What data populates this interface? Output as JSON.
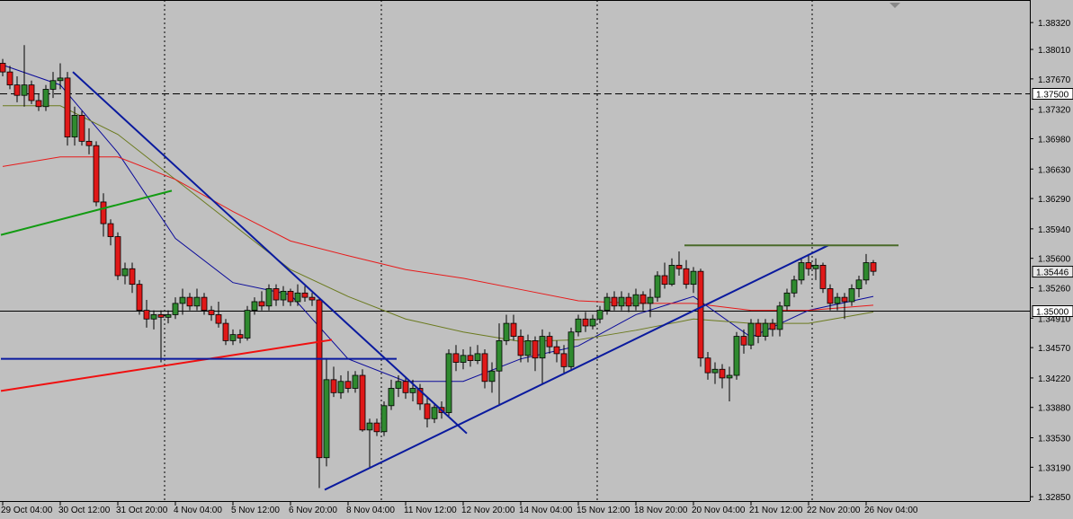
{
  "chart_data": {
    "type": "candlestick",
    "categories": [
      "29 Oct 04:00",
      null,
      null,
      null,
      null,
      null,
      null,
      null,
      "30 Oct 12:00",
      null,
      null,
      null,
      null,
      null,
      null,
      null,
      "31 Oct 20:00",
      null,
      null,
      null,
      null,
      null,
      null,
      null,
      "4 Nov 04:00",
      null,
      null,
      null,
      null,
      null,
      null,
      null,
      "5 Nov 12:00",
      null,
      null,
      null,
      null,
      null,
      null,
      null,
      "6 Nov 20:00",
      null,
      null,
      null,
      null,
      null,
      null,
      null,
      "8 Nov 04:00",
      null,
      null,
      null,
      null,
      null,
      null,
      null,
      "11 Nov 12:00",
      null,
      null,
      null,
      null,
      null,
      null,
      null,
      "12 Nov 20:00",
      null,
      null,
      null,
      null,
      null,
      null,
      null,
      "14 Nov 04:00",
      null,
      null,
      null,
      null,
      null,
      null,
      null,
      "15 Nov 12:00",
      null,
      null,
      null,
      null,
      null,
      null,
      null,
      "18 Nov 20:00",
      null,
      null,
      null,
      null,
      null,
      null,
      null,
      "20 Nov 04:00",
      null,
      null,
      null,
      null,
      null,
      null,
      null,
      "21 Nov 12:00",
      null,
      null,
      null,
      null,
      null,
      null,
      null,
      "22 Nov 20:00",
      null,
      null,
      null,
      null,
      null,
      null,
      null,
      "26 Nov 04:00",
      null
    ],
    "ohlc": [
      [
        1.3785,
        1.379,
        1.377,
        1.3775
      ],
      [
        1.3775,
        1.3782,
        1.3755,
        1.376
      ],
      [
        1.376,
        1.377,
        1.374,
        1.3748
      ],
      [
        1.3748,
        1.3806,
        1.3735,
        1.376
      ],
      [
        1.376,
        1.3765,
        1.3738,
        1.3742
      ],
      [
        1.3742,
        1.375,
        1.373,
        1.3735
      ],
      [
        1.3735,
        1.376,
        1.373,
        1.3755
      ],
      [
        1.3755,
        1.3775,
        1.3745,
        1.3765
      ],
      [
        1.3765,
        1.3785,
        1.3755,
        1.3768
      ],
      [
        1.3768,
        1.3775,
        1.369,
        1.37
      ],
      [
        1.37,
        1.3735,
        1.369,
        1.3725
      ],
      [
        1.3725,
        1.373,
        1.369,
        1.3695
      ],
      [
        1.3695,
        1.371,
        1.368,
        1.369
      ],
      [
        1.369,
        1.3695,
        1.362,
        1.3625
      ],
      [
        1.3625,
        1.3635,
        1.3585,
        1.36
      ],
      [
        1.36,
        1.3605,
        1.3575,
        1.3585
      ],
      [
        1.3585,
        1.359,
        1.3535,
        1.354
      ],
      [
        1.354,
        1.3555,
        1.353,
        1.3548
      ],
      [
        1.3548,
        1.3555,
        1.352,
        1.353
      ],
      [
        1.353,
        1.3535,
        1.3495,
        1.35
      ],
      [
        1.35,
        1.3512,
        1.348,
        1.349
      ],
      [
        1.349,
        1.35,
        1.3478,
        1.3495
      ],
      [
        1.3495,
        1.35,
        1.344,
        1.3492
      ],
      [
        1.3492,
        1.35,
        1.3485,
        1.3495
      ],
      [
        1.3495,
        1.3515,
        1.349,
        1.3508
      ],
      [
        1.3508,
        1.3525,
        1.3495,
        1.3515
      ],
      [
        1.3515,
        1.352,
        1.35,
        1.3505
      ],
      [
        1.3505,
        1.3525,
        1.35,
        1.3515
      ],
      [
        1.3515,
        1.352,
        1.3495,
        1.35
      ],
      [
        1.35,
        1.3505,
        1.3488,
        1.3495
      ],
      [
        1.3495,
        1.351,
        1.348,
        1.3485
      ],
      [
        1.3485,
        1.349,
        1.346,
        1.3465
      ],
      [
        1.3465,
        1.3478,
        1.346,
        1.3472
      ],
      [
        1.3472,
        1.3478,
        1.3462,
        1.3468
      ],
      [
        1.3468,
        1.3505,
        1.3465,
        1.35
      ],
      [
        1.35,
        1.3515,
        1.3495,
        1.351
      ],
      [
        1.351,
        1.3522,
        1.35,
        1.3505
      ],
      [
        1.3505,
        1.353,
        1.35,
        1.3525
      ],
      [
        1.3525,
        1.353,
        1.3505,
        1.3512
      ],
      [
        1.3512,
        1.3528,
        1.3505,
        1.3522
      ],
      [
        1.3522,
        1.3525,
        1.3505,
        1.351
      ],
      [
        1.351,
        1.353,
        1.3505,
        1.352
      ],
      [
        1.352,
        1.3528,
        1.351,
        1.3515
      ],
      [
        1.3515,
        1.352,
        1.3505,
        1.3512
      ],
      [
        1.3512,
        1.3515,
        1.3295,
        1.333
      ],
      [
        1.333,
        1.3445,
        1.332,
        1.342
      ],
      [
        1.342,
        1.3435,
        1.34,
        1.3405
      ],
      [
        1.3405,
        1.3425,
        1.3398,
        1.3418
      ],
      [
        1.3418,
        1.343,
        1.3405,
        1.341
      ],
      [
        1.341,
        1.343,
        1.3405,
        1.3425
      ],
      [
        1.3425,
        1.3432,
        1.336,
        1.3362
      ],
      [
        1.3362,
        1.3375,
        1.3318,
        1.337
      ],
      [
        1.337,
        1.3375,
        1.3355,
        1.336
      ],
      [
        1.336,
        1.3395,
        1.3355,
        1.339
      ],
      [
        1.339,
        1.342,
        1.3385,
        1.341
      ],
      [
        1.341,
        1.3425,
        1.34,
        1.3418
      ],
      [
        1.3418,
        1.3422,
        1.3398,
        1.3405
      ],
      [
        1.3405,
        1.342,
        1.3395,
        1.341
      ],
      [
        1.341,
        1.3415,
        1.3385,
        1.3392
      ],
      [
        1.3392,
        1.34,
        1.3365,
        1.3375
      ],
      [
        1.3375,
        1.3392,
        1.337,
        1.3388
      ],
      [
        1.3388,
        1.3395,
        1.3375,
        1.3382
      ],
      [
        1.3382,
        1.3455,
        1.3378,
        1.345
      ],
      [
        1.345,
        1.346,
        1.343,
        1.344
      ],
      [
        1.344,
        1.3455,
        1.3432,
        1.3448
      ],
      [
        1.3448,
        1.3458,
        1.3435,
        1.3442
      ],
      [
        1.3442,
        1.346,
        1.3438,
        1.345
      ],
      [
        1.345,
        1.3455,
        1.341,
        1.3418
      ],
      [
        1.3418,
        1.344,
        1.3405,
        1.343
      ],
      [
        1.343,
        1.3485,
        1.339,
        1.3465
      ],
      [
        1.3465,
        1.3495,
        1.346,
        1.3485
      ],
      [
        1.3485,
        1.3495,
        1.3465,
        1.347
      ],
      [
        1.347,
        1.3478,
        1.344,
        1.3448
      ],
      [
        1.3448,
        1.3472,
        1.344,
        1.3465
      ],
      [
        1.3465,
        1.347,
        1.343,
        1.3445
      ],
      [
        1.3445,
        1.3478,
        1.3415,
        1.347
      ],
      [
        1.347,
        1.3475,
        1.345,
        1.3458
      ],
      [
        1.3458,
        1.3465,
        1.344,
        1.345
      ],
      [
        1.345,
        1.346,
        1.3428,
        1.3435
      ],
      [
        1.3435,
        1.348,
        1.343,
        1.3475
      ],
      [
        1.3475,
        1.3495,
        1.347,
        1.349
      ],
      [
        1.349,
        1.3498,
        1.3475,
        1.3482
      ],
      [
        1.3482,
        1.3495,
        1.3478,
        1.349
      ],
      [
        1.349,
        1.3505,
        1.3485,
        1.35
      ],
      [
        1.35,
        1.352,
        1.3495,
        1.3515
      ],
      [
        1.3515,
        1.3522,
        1.35,
        1.3505
      ],
      [
        1.3505,
        1.3522,
        1.35,
        1.3515
      ],
      [
        1.3515,
        1.352,
        1.3498,
        1.3505
      ],
      [
        1.3505,
        1.3525,
        1.35,
        1.3518
      ],
      [
        1.3518,
        1.3522,
        1.35,
        1.3508
      ],
      [
        1.3508,
        1.3525,
        1.3492,
        1.3515
      ],
      [
        1.3515,
        1.3545,
        1.351,
        1.354
      ],
      [
        1.354,
        1.3555,
        1.3525,
        1.353
      ],
      [
        1.353,
        1.356,
        1.3528,
        1.3552
      ],
      [
        1.3552,
        1.3568,
        1.354,
        1.3548
      ],
      [
        1.3548,
        1.3558,
        1.3525,
        1.353
      ],
      [
        1.353,
        1.355,
        1.352,
        1.3545
      ],
      [
        1.3545,
        1.3548,
        1.3435,
        1.3445
      ],
      [
        1.3445,
        1.3452,
        1.342,
        1.3428
      ],
      [
        1.3428,
        1.344,
        1.3415,
        1.3432
      ],
      [
        1.3432,
        1.3438,
        1.341,
        1.3422
      ],
      [
        1.3422,
        1.3435,
        1.3395,
        1.3425
      ],
      [
        1.3425,
        1.3475,
        1.342,
        1.347
      ],
      [
        1.347,
        1.3478,
        1.345,
        1.346
      ],
      [
        1.346,
        1.349,
        1.3455,
        1.3485
      ],
      [
        1.3485,
        1.349,
        1.3462,
        1.347
      ],
      [
        1.347,
        1.349,
        1.3465,
        1.3485
      ],
      [
        1.3485,
        1.349,
        1.347,
        1.3478
      ],
      [
        1.3478,
        1.351,
        1.347,
        1.3505
      ],
      [
        1.3505,
        1.3525,
        1.35,
        1.352
      ],
      [
        1.352,
        1.354,
        1.3515,
        1.3535
      ],
      [
        1.3535,
        1.356,
        1.353,
        1.3555
      ],
      [
        1.3555,
        1.3565,
        1.354,
        1.3548
      ],
      [
        1.3548,
        1.356,
        1.3535,
        1.3552
      ],
      [
        1.3552,
        1.3555,
        1.352,
        1.3525
      ],
      [
        1.3525,
        1.353,
        1.35,
        1.3508
      ],
      [
        1.3508,
        1.352,
        1.35,
        1.3515
      ],
      [
        1.3515,
        1.352,
        1.349,
        1.351
      ],
      [
        1.351,
        1.353,
        1.3505,
        1.3525
      ],
      [
        1.3525,
        1.354,
        1.3515,
        1.3535
      ],
      [
        1.3535,
        1.3565,
        1.353,
        1.3555
      ],
      [
        1.3555,
        1.3558,
        1.354,
        1.3545
      ]
    ],
    "up_color": "#2f8a2f",
    "down_color": "#e01818",
    "indicators": [
      {
        "color": "#0a0a9a",
        "x": [
          0,
          8,
          16,
          24,
          32,
          40,
          48,
          56,
          64,
          72,
          80,
          88,
          96,
          104,
          112,
          121
        ],
        "values": [
          1.3783,
          1.376,
          1.3682,
          1.3583,
          1.3532,
          1.3518,
          1.3444,
          1.3418,
          1.3418,
          1.3444,
          1.3459,
          1.3495,
          1.3516,
          1.3469,
          1.35,
          1.3516
        ]
      },
      {
        "color": "#6b7a1e",
        "x": [
          0,
          8,
          16,
          24,
          32,
          40,
          48,
          56,
          64,
          72,
          80,
          88,
          96,
          104,
          112,
          121
        ],
        "values": [
          1.3736,
          1.3736,
          1.3703,
          1.3651,
          1.3599,
          1.3547,
          1.3516,
          1.349,
          1.3475,
          1.3464,
          1.3466,
          1.3477,
          1.349,
          1.3485,
          1.3485,
          1.3498
        ]
      },
      {
        "color": "#e81a1a",
        "x": [
          0,
          8,
          16,
          24,
          32,
          40,
          48,
          56,
          64,
          72,
          80,
          88,
          96,
          104,
          112,
          121
        ],
        "values": [
          1.3666,
          1.3677,
          1.3677,
          1.3651,
          1.3614,
          1.358,
          1.3563,
          1.3547,
          1.3537,
          1.3524,
          1.3511,
          1.3508,
          1.3508,
          1.35,
          1.35,
          1.3506
        ]
      }
    ],
    "trend_lines": [
      {
        "color": "#0a1a9e",
        "points": [
          [
            9.75,
            1.3775
          ],
          [
            64.5,
            1.3358
          ]
        ]
      },
      {
        "color": "#0a1a9e",
        "points": [
          [
            44.75,
            1.3293
          ],
          [
            114.75,
            1.3575
          ]
        ]
      },
      {
        "color": "#129b12",
        "points": [
          [
            -0.25,
            1.3587
          ],
          [
            23.5,
            1.3638
          ]
        ]
      },
      {
        "color": "#f01010",
        "points": [
          [
            -0.25,
            1.3407
          ],
          [
            45.75,
            1.3466
          ]
        ]
      },
      {
        "color": "#0a1a9e",
        "points": [
          [
            -0.25,
            1.3444
          ],
          [
            54.75,
            1.3444
          ]
        ]
      },
      {
        "color": "#4a6a2a",
        "points": [
          [
            94.75,
            1.3575
          ],
          [
            124.5,
            1.3575
          ]
        ]
      }
    ],
    "levels": [
      {
        "value": 1.375,
        "label": "1.37500",
        "style": "dashed"
      },
      {
        "value": 1.35,
        "label": "1.35000",
        "style": "solid"
      }
    ],
    "last_price": {
      "value": 1.35446,
      "label": "1.35446"
    },
    "ylim": [
      1.328,
      1.3858
    ],
    "yticks": [
      {
        "value": 1.3832,
        "label": "1.38320"
      },
      {
        "value": 1.3801,
        "label": "1.38010"
      },
      {
        "value": 1.3767,
        "label": "1.37670"
      },
      {
        "value": 1.3732,
        "label": "1.37320"
      },
      {
        "value": 1.3698,
        "label": "1.36980"
      },
      {
        "value": 1.3663,
        "label": "1.36630"
      },
      {
        "value": 1.3629,
        "label": "1.36290"
      },
      {
        "value": 1.3594,
        "label": "1.35940"
      },
      {
        "value": 1.356,
        "label": "1.35600"
      },
      {
        "value": 1.3526,
        "label": "1.35260"
      },
      {
        "value": 1.3491,
        "label": "1.34910"
      },
      {
        "value": 1.3457,
        "label": "1.34570"
      },
      {
        "value": 1.3422,
        "label": "1.34220"
      },
      {
        "value": 1.3388,
        "label": "1.33880"
      },
      {
        "value": 1.3353,
        "label": "1.33530"
      },
      {
        "value": 1.3319,
        "label": "1.33190"
      },
      {
        "value": 1.3285,
        "label": "1.32850"
      }
    ]
  }
}
